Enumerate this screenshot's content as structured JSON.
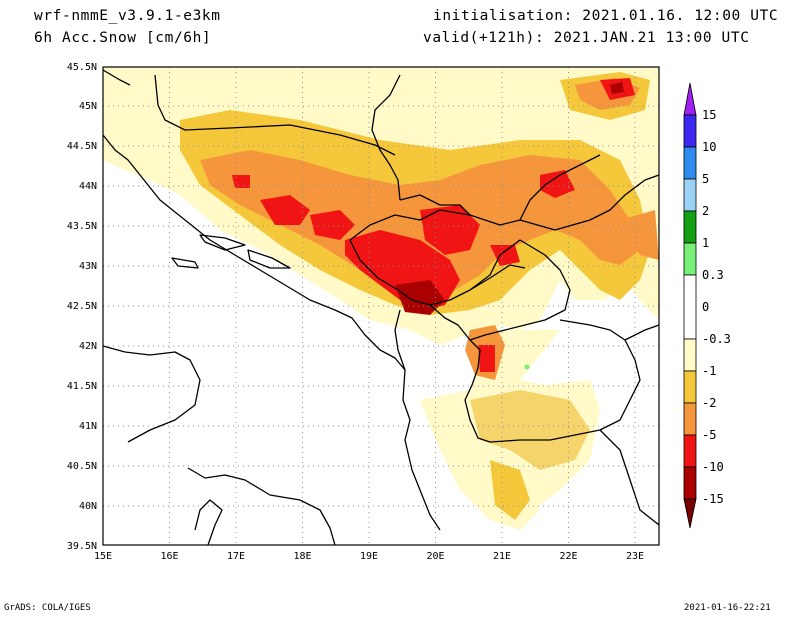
{
  "header": {
    "model": "wrf-nmmE_v3.9.1-e3km",
    "field": "6h Acc.Snow [cm/6h]",
    "init": "initialisation: 2021.01.16.  12:00 UTC",
    "valid": "valid(+121h): 2021.JAN.21 13:00 UTC"
  },
  "footer": {
    "left": "GrADS: COLA/IGES",
    "right": "2021-01-16-22:21"
  },
  "chart_data": {
    "type": "heatmap",
    "x_ticks": [
      "15E",
      "16E",
      "17E",
      "18E",
      "19E",
      "20E",
      "21E",
      "22E",
      "23E"
    ],
    "y_ticks": [
      "39.5N",
      "40N",
      "40.5N",
      "41N",
      "41.5N",
      "42N",
      "42.5N",
      "43N",
      "43.5N",
      "44N",
      "44.5N",
      "45N",
      "45.5N"
    ],
    "xlim": [
      15,
      23.3
    ],
    "ylim": [
      39.5,
      45.5
    ],
    "grid": "dotted",
    "colorbar": {
      "labels": [
        "15",
        "10",
        "5",
        "2",
        "1",
        "0.3",
        "0",
        "-0.3",
        "-1",
        "-2",
        "-5",
        "-10",
        "-15"
      ],
      "colors": [
        "#3c28f0",
        "#2e8cf0",
        "#9cd2f5",
        "#14a014",
        "#78f078",
        "#ffffff",
        "#fffac8",
        "#f5c83c",
        "#f5963c",
        "#f01414",
        "#aa0000"
      ],
      "top_arrow": "#a020f0",
      "bottom_arrow": "#780000"
    }
  }
}
